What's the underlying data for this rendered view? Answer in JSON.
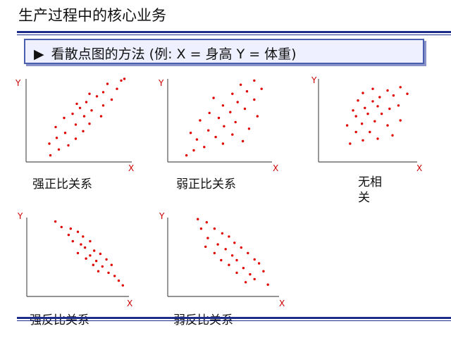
{
  "title": "生产过程中的核心业务",
  "subtitle": {
    "marker": "▶",
    "text": "看散点图的方法 (例: X = 身高 Y = 体重)"
  },
  "chart_data": [
    {
      "type": "scatter",
      "title": "强正比关系",
      "xlabel": "X",
      "ylabel": "Y",
      "points": [
        [
          0.23,
          0.08
        ],
        [
          0.31,
          0.15
        ],
        [
          0.22,
          0.22
        ],
        [
          0.4,
          0.2
        ],
        [
          0.29,
          0.29
        ],
        [
          0.47,
          0.28
        ],
        [
          0.37,
          0.35
        ],
        [
          0.54,
          0.37
        ],
        [
          0.28,
          0.42
        ],
        [
          0.47,
          0.45
        ],
        [
          0.6,
          0.46
        ],
        [
          0.36,
          0.53
        ],
        [
          0.55,
          0.55
        ],
        [
          0.71,
          0.55
        ],
        [
          0.44,
          0.58
        ],
        [
          0.62,
          0.62
        ],
        [
          0.51,
          0.65
        ],
        [
          0.73,
          0.68
        ],
        [
          0.48,
          0.7
        ],
        [
          0.57,
          0.72
        ],
        [
          0.81,
          0.75
        ],
        [
          0.67,
          0.79
        ],
        [
          0.6,
          0.82
        ],
        [
          0.73,
          0.84
        ],
        [
          0.86,
          0.88
        ],
        [
          0.77,
          0.94
        ],
        [
          0.9,
          0.98
        ],
        [
          0.93,
          1.0
        ]
      ]
    },
    {
      "type": "scatter",
      "title": "弱正比关系",
      "xlabel": "X",
      "ylabel": "Y",
      "points": [
        [
          0.18,
          0.08
        ],
        [
          0.25,
          0.14
        ],
        [
          0.35,
          0.18
        ],
        [
          0.53,
          0.22
        ],
        [
          0.72,
          0.25
        ],
        [
          0.28,
          0.27
        ],
        [
          0.46,
          0.3
        ],
        [
          0.62,
          0.33
        ],
        [
          0.22,
          0.35
        ],
        [
          0.39,
          0.38
        ],
        [
          0.78,
          0.4
        ],
        [
          0.54,
          0.43
        ],
        [
          0.65,
          0.48
        ],
        [
          0.31,
          0.5
        ],
        [
          0.49,
          0.53
        ],
        [
          0.86,
          0.55
        ],
        [
          0.4,
          0.59
        ],
        [
          0.6,
          0.6
        ],
        [
          0.74,
          0.64
        ],
        [
          0.53,
          0.68
        ],
        [
          0.67,
          0.72
        ],
        [
          0.83,
          0.75
        ],
        [
          0.44,
          0.77
        ],
        [
          0.62,
          0.82
        ],
        [
          0.76,
          0.85
        ],
        [
          0.9,
          0.88
        ],
        [
          0.7,
          0.93
        ],
        [
          0.83,
          0.98
        ]
      ]
    },
    {
      "type": "scatter",
      "title": "无相关",
      "xlabel": "X",
      "ylabel": "Y",
      "points": [
        [
          0.32,
          0.22
        ],
        [
          0.45,
          0.26
        ],
        [
          0.6,
          0.28
        ],
        [
          0.75,
          0.32
        ],
        [
          0.38,
          0.36
        ],
        [
          0.52,
          0.36
        ],
        [
          0.29,
          0.44
        ],
        [
          0.7,
          0.44
        ],
        [
          0.44,
          0.46
        ],
        [
          0.57,
          0.49
        ],
        [
          0.83,
          0.5
        ],
        [
          0.38,
          0.55
        ],
        [
          0.5,
          0.58
        ],
        [
          0.64,
          0.58
        ],
        [
          0.35,
          0.62
        ],
        [
          0.72,
          0.64
        ],
        [
          0.47,
          0.65
        ],
        [
          0.6,
          0.67
        ],
        [
          0.81,
          0.68
        ],
        [
          0.55,
          0.73
        ],
        [
          0.4,
          0.74
        ],
        [
          0.62,
          0.78
        ],
        [
          0.76,
          0.8
        ],
        [
          0.9,
          0.82
        ],
        [
          0.45,
          0.83
        ],
        [
          0.7,
          0.86
        ],
        [
          0.55,
          0.88
        ],
        [
          0.83,
          0.9
        ]
      ]
    },
    {
      "type": "scatter",
      "title": "强反比关系",
      "xlabel": "X",
      "ylabel": "Y",
      "points": [
        [
          0.28,
          0.95
        ],
        [
          0.34,
          0.88
        ],
        [
          0.43,
          0.86
        ],
        [
          0.5,
          0.82
        ],
        [
          0.41,
          0.78
        ],
        [
          0.55,
          0.76
        ],
        [
          0.45,
          0.7
        ],
        [
          0.53,
          0.66
        ],
        [
          0.62,
          0.7
        ],
        [
          0.57,
          0.62
        ],
        [
          0.66,
          0.58
        ],
        [
          0.5,
          0.55
        ],
        [
          0.62,
          0.52
        ],
        [
          0.72,
          0.54
        ],
        [
          0.58,
          0.48
        ],
        [
          0.68,
          0.45
        ],
        [
          0.78,
          0.47
        ],
        [
          0.65,
          0.4
        ],
        [
          0.74,
          0.38
        ],
        [
          0.83,
          0.4
        ],
        [
          0.7,
          0.32
        ],
        [
          0.8,
          0.3
        ],
        [
          0.86,
          0.26
        ],
        [
          0.9,
          0.2
        ],
        [
          0.94,
          0.14
        ]
      ]
    },
    {
      "type": "scatter",
      "title": "弱反比关系",
      "xlabel": "X",
      "ylabel": "Y",
      "points": [
        [
          0.27,
          0.98
        ],
        [
          0.35,
          0.94
        ],
        [
          0.3,
          0.86
        ],
        [
          0.42,
          0.86
        ],
        [
          0.49,
          0.8
        ],
        [
          0.36,
          0.74
        ],
        [
          0.55,
          0.76
        ],
        [
          0.6,
          0.68
        ],
        [
          0.45,
          0.66
        ],
        [
          0.34,
          0.63
        ],
        [
          0.52,
          0.6
        ],
        [
          0.66,
          0.62
        ],
        [
          0.42,
          0.55
        ],
        [
          0.58,
          0.52
        ],
        [
          0.72,
          0.55
        ],
        [
          0.48,
          0.46
        ],
        [
          0.62,
          0.46
        ],
        [
          0.78,
          0.47
        ],
        [
          0.55,
          0.4
        ],
        [
          0.68,
          0.36
        ],
        [
          0.82,
          0.42
        ],
        [
          0.62,
          0.3
        ],
        [
          0.74,
          0.28
        ],
        [
          0.86,
          0.32
        ],
        [
          0.78,
          0.22
        ],
        [
          0.7,
          0.18
        ],
        [
          0.9,
          0.15
        ]
      ]
    }
  ]
}
